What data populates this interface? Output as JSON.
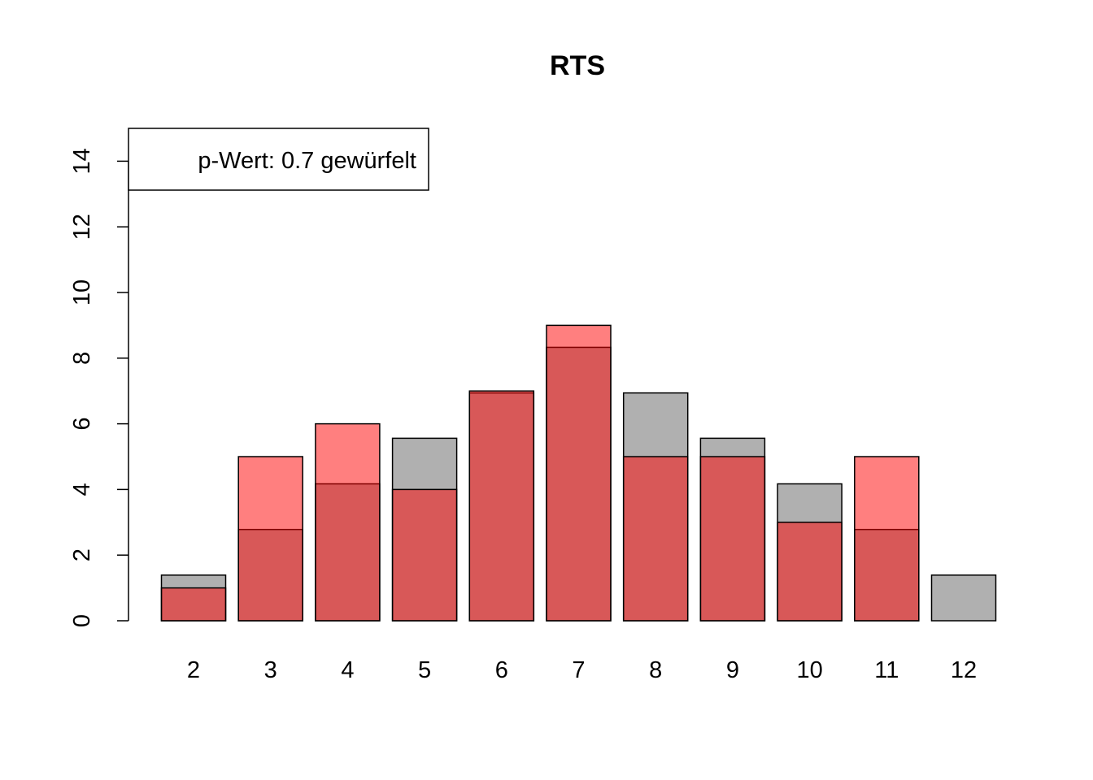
{
  "chart_data": {
    "type": "bar",
    "title": "RTS",
    "xlabel": "",
    "ylabel": "",
    "categories": [
      "2",
      "3",
      "4",
      "5",
      "6",
      "7",
      "8",
      "9",
      "10",
      "11",
      "12"
    ],
    "ylim": [
      0,
      15
    ],
    "yticks": [
      "0",
      "2",
      "4",
      "6",
      "8",
      "10",
      "12",
      "14"
    ],
    "series": [
      {
        "values": [
          1.39,
          2.78,
          4.17,
          5.56,
          6.94,
          8.33,
          6.94,
          5.56,
          4.17,
          2.78,
          1.39
        ],
        "color": "#b0b0b0"
      },
      {
        "values": [
          1,
          5,
          6,
          4,
          7,
          9,
          5,
          5,
          3,
          5,
          0
        ],
        "color": "#ff0000",
        "opacity": 0.5
      }
    ],
    "legend": {
      "text": "p-Wert: 0.7 gewürfelt",
      "position": "top-left"
    },
    "grid": false
  }
}
